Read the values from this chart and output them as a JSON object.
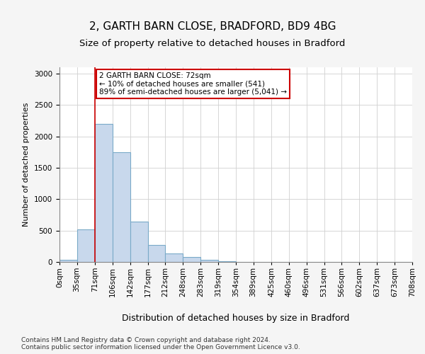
{
  "title1": "2, GARTH BARN CLOSE, BRADFORD, BD9 4BG",
  "title2": "Size of property relative to detached houses in Bradford",
  "xlabel": "Distribution of detached houses by size in Bradford",
  "ylabel": "Number of detached properties",
  "bin_edges": [
    0,
    35,
    71,
    106,
    142,
    177,
    212,
    248,
    283,
    319,
    354,
    389,
    425,
    460,
    496,
    531,
    566,
    602,
    637,
    673,
    708
  ],
  "bar_heights": [
    30,
    520,
    2200,
    1750,
    640,
    265,
    135,
    75,
    35,
    15,
    5,
    2,
    0,
    0,
    0,
    0,
    0,
    0,
    0,
    0
  ],
  "bar_color": "#c8d8ec",
  "bar_edgecolor": "#7aaac8",
  "red_line_x": 71,
  "annotation_text": "2 GARTH BARN CLOSE: 72sqm\n← 10% of detached houses are smaller (541)\n89% of semi-detached houses are larger (5,041) →",
  "annotation_box_color": "#ffffff",
  "annotation_box_edgecolor": "#cc0000",
  "ylim": [
    0,
    3100
  ],
  "yticks": [
    0,
    500,
    1000,
    1500,
    2000,
    2500,
    3000
  ],
  "footer": "Contains HM Land Registry data © Crown copyright and database right 2024.\nContains public sector information licensed under the Open Government Licence v3.0.",
  "bg_color": "#f5f5f5",
  "plot_bg_color": "#ffffff",
  "grid_color": "#d0d0d0",
  "title1_fontsize": 11,
  "title2_fontsize": 9.5,
  "xlabel_fontsize": 9,
  "ylabel_fontsize": 8,
  "tick_fontsize": 7.5,
  "footer_fontsize": 6.5
}
